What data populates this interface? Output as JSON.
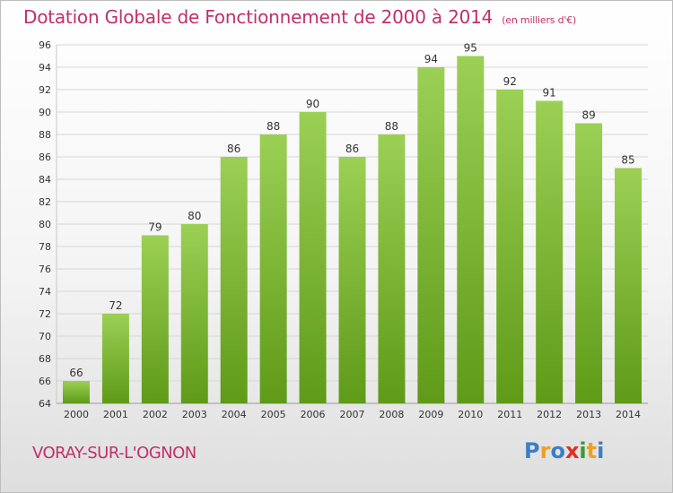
{
  "header": {
    "title": "Dotation Globale de Fonctionnement de 2000 à 2014",
    "unit": "(en milliers d'€)"
  },
  "footer": {
    "town": "VORAY-SUR-L'OGNON",
    "logo_letters": [
      "P",
      "r",
      "o",
      "x",
      "i",
      "t",
      "i"
    ],
    "logo_colors": [
      "#3a7fc4",
      "#f0a020",
      "#3a7fc4",
      "#e03020",
      "#3a9a30",
      "#f0a020",
      "#3a7fc4"
    ]
  },
  "colors": {
    "bar_top": "#9bd055",
    "bar_bottom": "#5f9a18",
    "grid": "#d6d6d6",
    "axis_text": "#333333",
    "title": "#c0306a"
  },
  "chart_data": {
    "type": "bar",
    "title": "Dotation Globale de Fonctionnement de 2000 à 2014",
    "categories": [
      "2000",
      "2001",
      "2002",
      "2003",
      "2004",
      "2005",
      "2006",
      "2007",
      "2008",
      "2009",
      "2010",
      "2011",
      "2012",
      "2013",
      "2014"
    ],
    "values": [
      66,
      72,
      79,
      80,
      86,
      88,
      90,
      86,
      88,
      94,
      95,
      92,
      91,
      89,
      85
    ],
    "ylim": [
      64,
      96
    ],
    "yticks": [
      64,
      66,
      68,
      70,
      72,
      74,
      76,
      78,
      80,
      82,
      84,
      86,
      88,
      90,
      92,
      94,
      96
    ],
    "xlabel": "",
    "ylabel": "",
    "grid": true,
    "data_labels": true
  }
}
